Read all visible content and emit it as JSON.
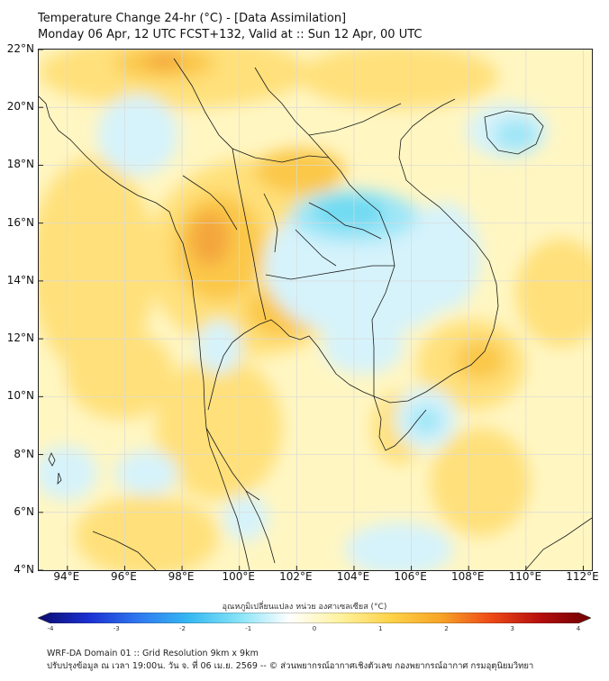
{
  "header": {
    "title": "Temperature Change 24-hr (°C) - [Data Assimilation]",
    "subtitle": "Monday 06 Apr, 12 UTC FCST+132, Valid at :: Sun 12 Apr, 00 UTC"
  },
  "map": {
    "lat_labels": [
      "22°N",
      "20°N",
      "18°N",
      "16°N",
      "14°N",
      "12°N",
      "10°N",
      "8°N",
      "6°N",
      "4°N"
    ],
    "lon_labels": [
      "94°E",
      "96°E",
      "98°E",
      "100°E",
      "102°E",
      "104°E",
      "106°E",
      "108°E",
      "110°E",
      "112°E"
    ],
    "lat_range": [
      4,
      22
    ],
    "lon_range": [
      93,
      112.3
    ],
    "colors": {
      "warm_light": "#fff6c2",
      "warm": "#ffe07a",
      "warm_strong": "#fbc84a",
      "warmest": "#f4a63c",
      "cool_light": "#d6f3fb",
      "cool": "#9fe6f7",
      "cool_strong": "#6fdaf2",
      "coast": "#1a1a1a",
      "grid": "#d9d9d9"
    }
  },
  "colorbar": {
    "title": "อุณหภูมิเปลี่ยนแปลง หน่วย องศาเซลเซียส (°C)",
    "ticks": [
      "-4",
      "-3",
      "-2",
      "-1",
      "0",
      "1",
      "2",
      "3",
      "4"
    ],
    "range": [
      -4,
      4
    ],
    "stops": [
      "#0b0b6e",
      "#1a2fd0",
      "#2f78f0",
      "#35b8f2",
      "#86e3f7",
      "#ffffff",
      "#fff2a0",
      "#ffd34a",
      "#f7a526",
      "#ee4a17",
      "#b50d0d",
      "#6e0000"
    ]
  },
  "footer": {
    "line1": "WRF-DA Domain 01 :: Grid Resolution 9km x 9km",
    "line2": "ปรับปรุงข้อมูล ณ เวลา 19:00น. วัน จ. ที่ 06 เม.ย. 2569 -- © ส่วนพยากรณ์อากาศเชิงตัวเลข กองพยากรณ์อากาศ กรมอุตุนิยมวิทยา"
  }
}
